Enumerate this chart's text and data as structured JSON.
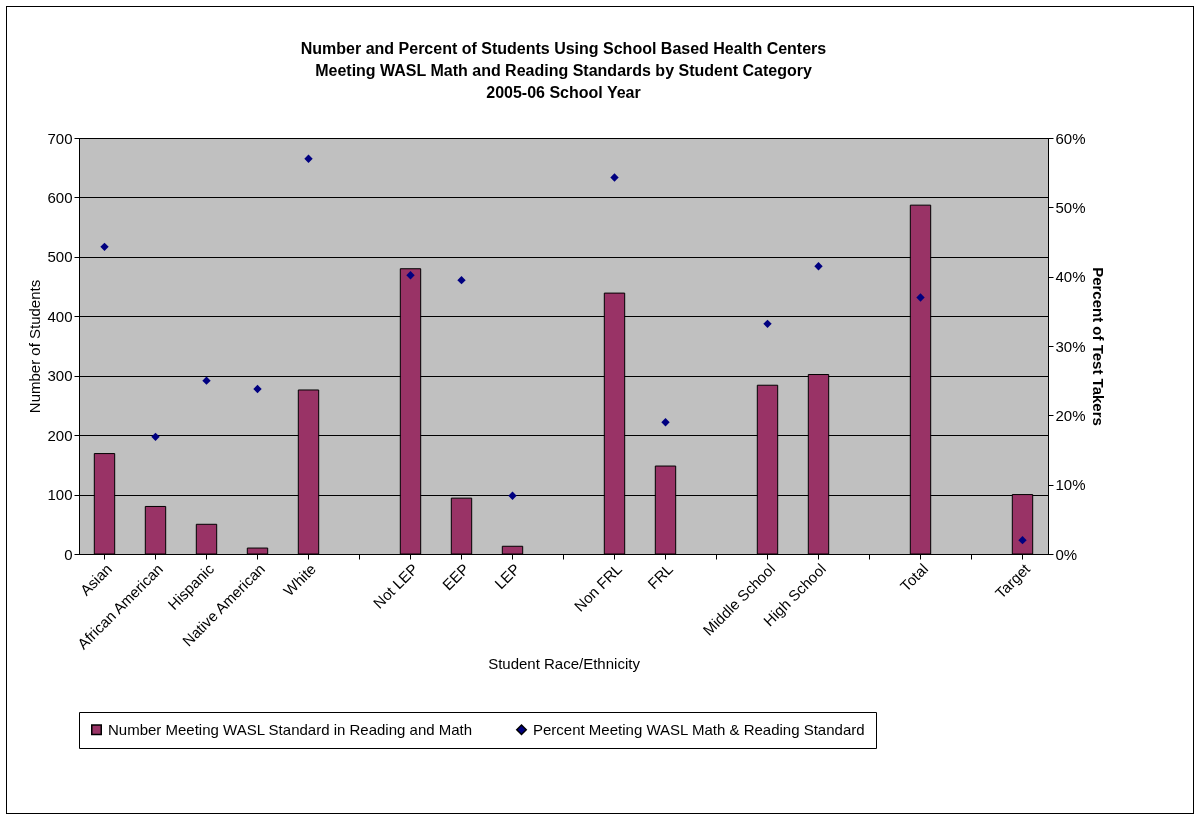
{
  "chart_data": {
    "type": "bar",
    "title": "Number and Percent of Students Using School Based Health Centers\nMeeting WASL Math and Reading Standards by Student Category\n2005-06 School Year",
    "xlabel": "Student Race/Ethnicity",
    "ylabel": "Number of Students",
    "y2label": "Percent of Test Takers",
    "categories": [
      "Asian",
      "African American",
      "Hispanic",
      "Native American",
      "White",
      null,
      "Not LEP",
      "EEP",
      "LEP",
      null,
      "Non FRL",
      "FRL",
      null,
      "Middle School",
      "High School",
      null,
      "Total",
      null,
      "Target"
    ],
    "series": [
      {
        "name": "Number Meeting WASL Standard in Reading and Math",
        "type": "bar",
        "color": "#993366",
        "values": [
          169,
          80,
          50,
          10,
          276,
          null,
          480,
          94,
          13,
          null,
          439,
          148,
          null,
          284,
          302,
          null,
          587,
          null,
          100
        ]
      },
      {
        "name": "Percent Meeting WASL Math & Reading Standard",
        "type": "scatter",
        "axis": "y2",
        "color": "#000080",
        "values": [
          44.3,
          16.9,
          25,
          23.8,
          57,
          null,
          40.2,
          39.5,
          8.4,
          null,
          54.3,
          19,
          null,
          33.2,
          41.5,
          null,
          37,
          null,
          2
        ]
      }
    ],
    "ylim": [
      0,
      700
    ],
    "yticks": [
      0,
      100,
      200,
      300,
      400,
      500,
      600,
      700
    ],
    "y2lim": [
      0,
      60
    ],
    "y2ticks": [
      {
        "value": 0,
        "label": "0%"
      },
      {
        "value": 10,
        "label": "10%"
      },
      {
        "value": 20,
        "label": "20%"
      },
      {
        "value": 30,
        "label": "30%"
      },
      {
        "value": 40,
        "label": "40%"
      },
      {
        "value": 50,
        "label": "50%"
      },
      {
        "value": 60,
        "label": "60%"
      }
    ],
    "grid": "y",
    "legend": "bottom",
    "marker": "diamond"
  }
}
